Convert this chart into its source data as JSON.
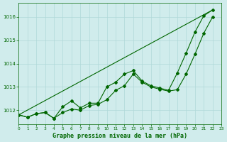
{
  "title": "Graphe pression niveau de la mer (hPa)",
  "background_color": "#d0ecec",
  "grid_color": "#b0d8d8",
  "line_color": "#006600",
  "xlim": [
    0,
    23
  ],
  "ylim": [
    1011.4,
    1016.6
  ],
  "yticks": [
    1012,
    1013,
    1014,
    1015,
    1016
  ],
  "xticks": [
    0,
    1,
    2,
    3,
    4,
    5,
    6,
    7,
    8,
    9,
    10,
    11,
    12,
    13,
    14,
    15,
    16,
    17,
    18,
    19,
    20,
    21,
    22,
    23
  ],
  "line1_x": [
    0,
    1,
    2,
    3,
    4,
    5,
    6,
    7,
    8,
    9,
    10,
    11,
    12,
    13,
    14,
    15,
    16,
    17,
    18,
    19,
    20,
    21,
    22
  ],
  "line1_y": [
    1011.8,
    1011.7,
    1011.85,
    1011.9,
    1011.65,
    1011.9,
    1012.05,
    1012.0,
    1012.2,
    1012.25,
    1012.45,
    1012.85,
    1013.05,
    1013.55,
    1013.2,
    1013.0,
    1012.9,
    1012.82,
    1012.88,
    1013.55,
    1014.4,
    1015.3,
    1016.0
  ],
  "line2_x": [
    0,
    1,
    2,
    3,
    4,
    5,
    6,
    7,
    8,
    9,
    10,
    11,
    12,
    13,
    14,
    15,
    16,
    17,
    18,
    19,
    20,
    21,
    22
  ],
  "line2_y": [
    1011.8,
    1011.7,
    1011.85,
    1011.9,
    1011.65,
    1012.15,
    1012.4,
    1012.1,
    1012.3,
    1012.3,
    1013.0,
    1013.2,
    1013.55,
    1013.7,
    1013.25,
    1013.05,
    1012.95,
    1012.85,
    1013.6,
    1014.45,
    1015.35,
    1016.05,
    1016.3
  ],
  "line3_x": [
    0,
    22
  ],
  "line3_y": [
    1011.8,
    1016.3
  ]
}
